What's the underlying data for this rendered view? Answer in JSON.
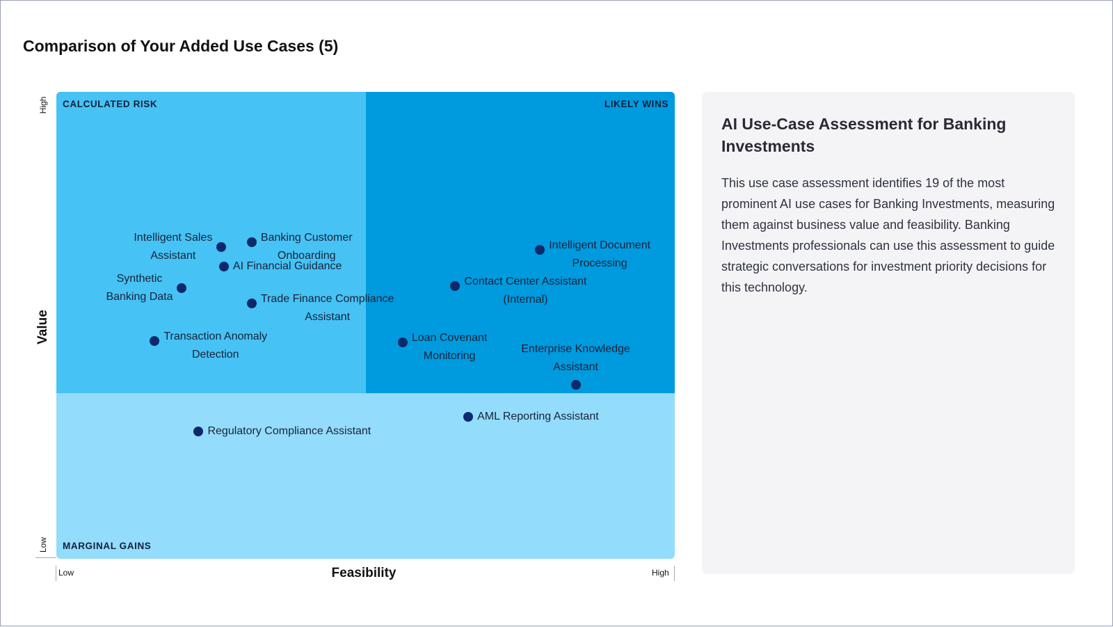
{
  "page": {
    "title": "Comparison of Your Added Use Cases (5)"
  },
  "quadrants": {
    "top_left": "CALCULATED RISK",
    "top_right": "LIKELY WINS",
    "bottom_left": "MARGINAL GAINS"
  },
  "colors": {
    "top_left": "#47c2f4",
    "top_right": "#009ade",
    "bottom": "#94dcfb",
    "point": "#0c2a6b"
  },
  "axes": {
    "y_title": "Value",
    "y_high": "High",
    "y_low": "Low",
    "x_title": "Feasibility",
    "x_low": "Low",
    "x_high": "High"
  },
  "chart_data": {
    "type": "scatter",
    "title": "Comparison of Your Added Use Cases (5)",
    "xlabel": "Feasibility",
    "ylabel": "Value",
    "xlim": [
      0,
      100
    ],
    "ylim": [
      0,
      100
    ],
    "x_ticks": [
      "Low",
      "High"
    ],
    "y_ticks": [
      "Low",
      "High"
    ],
    "quadrant_split": {
      "x": 50,
      "y": 35.5
    },
    "points": [
      {
        "label": "Intelligent Sales Assistant",
        "x": 26.7,
        "y": 66.8,
        "lines": [
          "Intelligent Sales",
          "Assistant"
        ],
        "label_pos": "left"
      },
      {
        "label": "Banking Customer Onboarding",
        "x": 31.6,
        "y": 67.8,
        "lines": [
          "Banking Customer",
          "Onboarding"
        ],
        "label_pos": "right"
      },
      {
        "label": "AI Financial Guidance",
        "x": 27.1,
        "y": 62.6,
        "lines": [
          "AI Financial Guidance"
        ],
        "label_pos": "right"
      },
      {
        "label": "Synthetic Banking Data",
        "x": 20.3,
        "y": 57.9,
        "lines": [
          "Synthetic",
          "Banking Data"
        ],
        "label_pos": "left"
      },
      {
        "label": "Trade Finance Compliance Assistant",
        "x": 31.6,
        "y": 54.7,
        "lines": [
          "Trade Finance Compliance",
          "Assistant"
        ],
        "label_pos": "right"
      },
      {
        "label": "Transaction Anomaly Detection",
        "x": 15.9,
        "y": 46.6,
        "lines": [
          "Transaction Anomaly",
          "Detection"
        ],
        "label_pos": "right"
      },
      {
        "label": "Intelligent Document Processing",
        "x": 78.2,
        "y": 66.2,
        "lines": [
          "Intelligent Document",
          "Processing"
        ],
        "label_pos": "right"
      },
      {
        "label": "Contact Center Assistant (Internal)",
        "x": 64.5,
        "y": 58.4,
        "lines": [
          "Contact Center Assistant",
          "(Internal)"
        ],
        "label_pos": "right"
      },
      {
        "label": "Loan Covenant Monitoring",
        "x": 56.0,
        "y": 46.3,
        "lines": [
          "Loan Covenant",
          "Monitoring"
        ],
        "label_pos": "right"
      },
      {
        "label": "Enterprise Knowledge Assistant",
        "x": 84.0,
        "y": 37.3,
        "lines": [
          "Enterprise Knowledge",
          "Assistant"
        ],
        "label_pos": "above"
      },
      {
        "label": "AML Reporting Assistant",
        "x": 66.6,
        "y": 30.4,
        "lines": [
          "AML Reporting Assistant"
        ],
        "label_pos": "right"
      },
      {
        "label": "Regulatory Compliance Assistant",
        "x": 23.0,
        "y": 27.3,
        "lines": [
          "Regulatory Compliance Assistant"
        ],
        "label_pos": "right"
      }
    ]
  },
  "info_panel": {
    "title": "AI Use-Case Assessment for Banking Investments",
    "body": "This use case assessment identifies 19 of the most prominent AI use cases for Banking Investments, measuring them against business value and feasibility. Banking Investments professionals can use this assessment to guide strategic conversations for investment priority decisions for this technology."
  }
}
